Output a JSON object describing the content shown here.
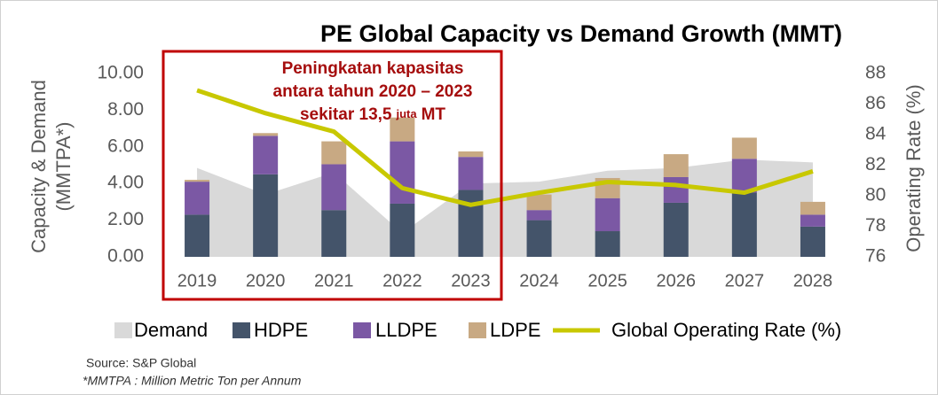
{
  "chart_data": {
    "type": "stacked_bar_area_line",
    "title": "PE Global Capacity vs Demand Growth (MMT)",
    "y_label": [
      "Capacity & Demand",
      "(MMTPA*)"
    ],
    "y2_label": "Operating Rate (%)",
    "categories": [
      "2019",
      "2020",
      "2021",
      "2022",
      "2023",
      "2024",
      "2025",
      "2026",
      "2027",
      "2028"
    ],
    "series": [
      {
        "name": "Demand",
        "kind": "area",
        "color": "#d9d9d9",
        "values": [
          4.85,
          3.4,
          4.6,
          1.3,
          4.0,
          4.1,
          4.7,
          4.85,
          5.3,
          5.15
        ]
      },
      {
        "name": "HDPE",
        "kind": "bar",
        "color": "#44546a",
        "values": [
          2.3,
          4.5,
          2.55,
          2.9,
          3.65,
          2.0,
          1.4,
          2.95,
          3.5,
          1.65
        ]
      },
      {
        "name": "LLDPE",
        "kind": "bar",
        "color": "#7b58a4",
        "values": [
          1.8,
          2.1,
          2.5,
          3.4,
          1.8,
          0.55,
          1.8,
          1.4,
          1.85,
          0.65
        ]
      },
      {
        "name": "LDPE",
        "kind": "bar",
        "color": "#c8a983",
        "values": [
          0.1,
          0.15,
          1.25,
          1.3,
          0.3,
          0.85,
          1.1,
          1.25,
          1.15,
          0.7
        ]
      },
      {
        "name": "Global Operating Rate (%)",
        "kind": "line",
        "axis": "y2",
        "color": "#c8c800",
        "values": [
          86.9,
          85.4,
          84.2,
          80.5,
          79.4,
          80.2,
          80.9,
          80.7,
          80.2,
          81.6
        ]
      }
    ],
    "ylim": [
      0,
      10
    ],
    "yticks": [
      {
        "value": 0,
        "label": "0.00"
      },
      {
        "value": 2,
        "label": "2.00"
      },
      {
        "value": 4,
        "label": "4.00"
      },
      {
        "value": 6,
        "label": "6.00"
      },
      {
        "value": 8,
        "label": "8.00"
      },
      {
        "value": 10,
        "label": "10.00"
      }
    ],
    "y2lim": [
      76,
      88
    ],
    "y2ticks": [
      76,
      78,
      80,
      82,
      84,
      86,
      88
    ],
    "annotation": [
      "Peningkatan kapasitas",
      "antara tahun 2020 – 2023",
      [
        "sekitar 13,5",
        "juta",
        "MT"
      ]
    ],
    "source": "Source: S&P Global",
    "note": "*MMTPA : Million Metric Ton per Annum"
  }
}
